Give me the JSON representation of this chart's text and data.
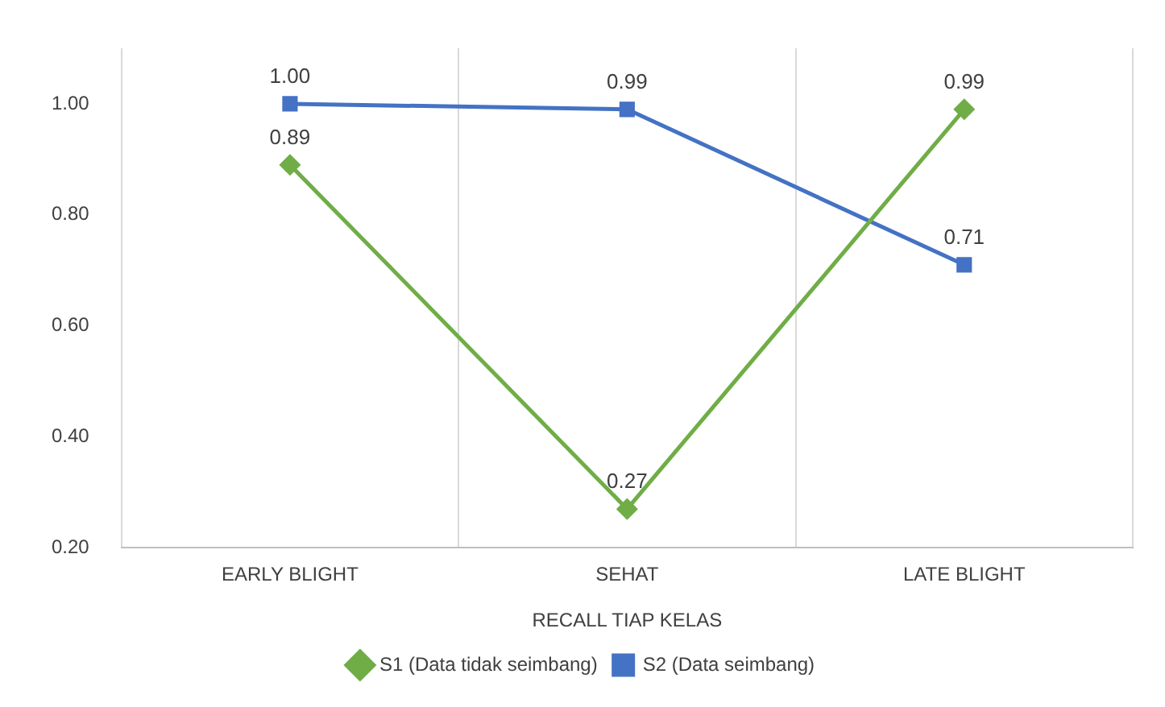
{
  "chart_data": {
    "type": "line",
    "xlabel": "RECALL TIAP KELAS",
    "categories": [
      "EARLY BLIGHT",
      "SEHAT",
      "LATE BLIGHT"
    ],
    "series": [
      {
        "name": "S1 (Data tidak seimbang)",
        "color": "#70ad47",
        "values": [
          0.89,
          0.27,
          0.99
        ],
        "value_labels": [
          "0.89",
          "0.27",
          "0.99"
        ],
        "marker": "diamond"
      },
      {
        "name": "S2 (Data seimbang)",
        "color": "#4472c4",
        "values": [
          1.0,
          0.99,
          0.71
        ],
        "value_labels": [
          "1.00",
          "0.99",
          "0.71"
        ],
        "marker": "square"
      }
    ],
    "ylim": [
      0.2,
      1.1
    ],
    "yticks": [
      {
        "value": 0.2,
        "label": "0.20"
      },
      {
        "value": 0.4,
        "label": "0.40"
      },
      {
        "value": 0.6,
        "label": "0.60"
      },
      {
        "value": 0.8,
        "label": "0.80"
      },
      {
        "value": 1.0,
        "label": "1.00"
      }
    ],
    "grid": "x",
    "legend": "bottom"
  }
}
